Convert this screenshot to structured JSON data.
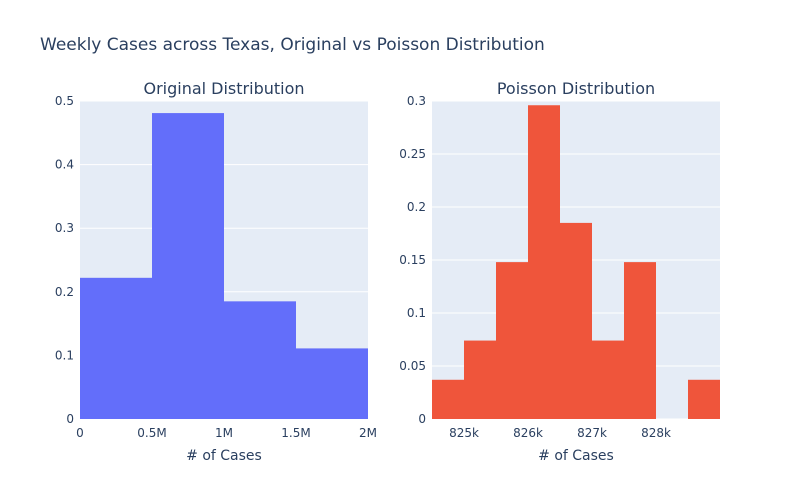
{
  "title": "Weekly Cases across Texas, Original vs Poisson Distribution",
  "colors": {
    "plot_bg": "#e5ecf6",
    "grid": "#ffffff",
    "text": "#2a3f5f"
  },
  "chart_data": [
    {
      "type": "bar",
      "title": "Original Distribution",
      "xlabel": "# of Cases",
      "ylabel": "",
      "color": "#636efa",
      "xlim": [
        0,
        2000000
      ],
      "ylim": [
        0,
        0.5
      ],
      "bins": [
        {
          "x0": 0,
          "x1": 500000,
          "value": 0.222
        },
        {
          "x0": 500000,
          "x1": 1000000,
          "value": 0.481
        },
        {
          "x0": 1000000,
          "x1": 1500000,
          "value": 0.185
        },
        {
          "x0": 1500000,
          "x1": 2000000,
          "value": 0.111
        }
      ],
      "x_ticks": [
        {
          "value": 0,
          "label": "0"
        },
        {
          "value": 500000,
          "label": "0.5M"
        },
        {
          "value": 1000000,
          "label": "1M"
        },
        {
          "value": 1500000,
          "label": "1.5M"
        },
        {
          "value": 2000000,
          "label": "2M"
        }
      ],
      "y_ticks": [
        {
          "value": 0,
          "label": "0"
        },
        {
          "value": 0.1,
          "label": "0.1"
        },
        {
          "value": 0.2,
          "label": "0.2"
        },
        {
          "value": 0.3,
          "label": "0.3"
        },
        {
          "value": 0.4,
          "label": "0.4"
        },
        {
          "value": 0.5,
          "label": "0.5"
        }
      ],
      "grid": true
    },
    {
      "type": "bar",
      "title": "Poisson Distribution",
      "xlabel": "# of Cases",
      "ylabel": "",
      "color": "#ef553b",
      "xlim": [
        824500,
        829000
      ],
      "ylim": [
        0,
        0.3
      ],
      "bins": [
        {
          "x0": 824500,
          "x1": 825000,
          "value": 0.037
        },
        {
          "x0": 825000,
          "x1": 825500,
          "value": 0.074
        },
        {
          "x0": 825500,
          "x1": 826000,
          "value": 0.148
        },
        {
          "x0": 826000,
          "x1": 826500,
          "value": 0.296
        },
        {
          "x0": 826500,
          "x1": 827000,
          "value": 0.185
        },
        {
          "x0": 827000,
          "x1": 827500,
          "value": 0.074
        },
        {
          "x0": 827500,
          "x1": 828000,
          "value": 0.148
        },
        {
          "x0": 828000,
          "x1": 828500,
          "value": 0
        },
        {
          "x0": 828500,
          "x1": 829000,
          "value": 0.037
        }
      ],
      "x_ticks": [
        {
          "value": 825000,
          "label": "825k"
        },
        {
          "value": 826000,
          "label": "826k"
        },
        {
          "value": 827000,
          "label": "827k"
        },
        {
          "value": 828000,
          "label": "828k"
        }
      ],
      "y_ticks": [
        {
          "value": 0,
          "label": "0"
        },
        {
          "value": 0.05,
          "label": "0.05"
        },
        {
          "value": 0.1,
          "label": "0.1"
        },
        {
          "value": 0.15,
          "label": "0.15"
        },
        {
          "value": 0.2,
          "label": "0.2"
        },
        {
          "value": 0.25,
          "label": "0.25"
        },
        {
          "value": 0.3,
          "label": "0.3"
        }
      ],
      "grid": true
    }
  ]
}
